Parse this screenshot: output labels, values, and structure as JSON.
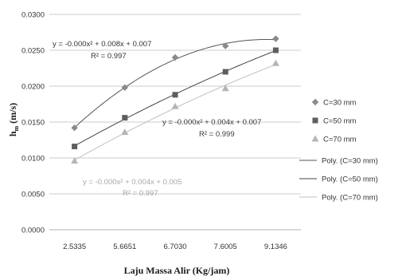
{
  "chart_data": {
    "type": "scatter",
    "categories": [
      "2.5335",
      "5.6651",
      "6.7030",
      "7.6005",
      "9.1346"
    ],
    "ylim": [
      0,
      0.03
    ],
    "yticks": [
      "0.0300",
      "0.0250",
      "0.0200",
      "0.0150",
      "0.0100",
      "0.0050",
      "0.0000"
    ],
    "ytick_values": [
      0.03,
      0.025,
      0.02,
      0.015,
      0.01,
      0.005,
      0
    ],
    "xlabel": "Laju Massa Alir (Kg/jam)",
    "ylabel_main": "h",
    "ylabel_sub": "m",
    "ylabel_unit": " (m/s)",
    "grid": true,
    "legend_position": "right",
    "series": [
      {
        "name": "C=30 mm",
        "marker": "diamond",
        "color": "#8a8a8a",
        "values": [
          0.0142,
          0.0198,
          0.024,
          0.0256,
          0.0266
        ],
        "trend_label": "Poly. (C=30 mm)",
        "trend_color": "#555555",
        "equation": "y = -0.000x² + 0.008x + 0.007",
        "r2": "R² = 0.997",
        "eq_color": "#333333"
      },
      {
        "name": "C=50 mm",
        "marker": "square",
        "color": "#5e5e5e",
        "values": [
          0.0116,
          0.0156,
          0.0188,
          0.022,
          0.025
        ],
        "trend_label": "Poly. (C=50 mm)",
        "trend_color": "#444444",
        "equation": "y = -0.000x² + 0.004x + 0.007",
        "r2": "R² = 0.999",
        "eq_color": "#3a3a3a"
      },
      {
        "name": "C=70 mm",
        "marker": "triangle",
        "color": "#b5b5b5",
        "values": [
          0.0096,
          0.0136,
          0.0172,
          0.0197,
          0.0232
        ],
        "trend_label": "Poly. (C=70 mm)",
        "trend_color": "#c0c0c0",
        "equation": "y = -0.000x² + 0.004x + 0.005",
        "r2": "R² = 0.997",
        "eq_color": "#a8a8a8"
      }
    ]
  }
}
